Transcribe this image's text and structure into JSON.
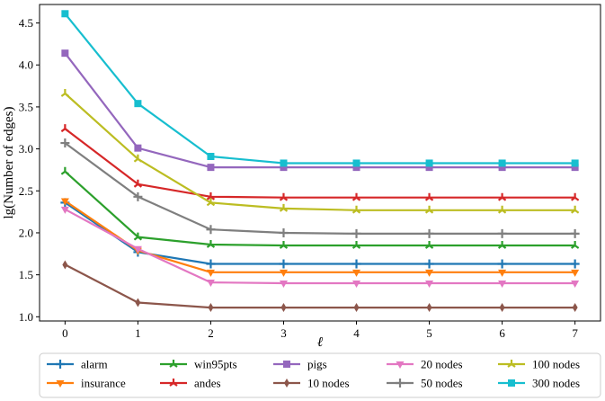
{
  "chart_data": {
    "type": "line",
    "xlabel": "ℓ",
    "ylabel": "lg(Number of edges)",
    "x": [
      0,
      1,
      2,
      3,
      4,
      5,
      6,
      7
    ],
    "xlim": [
      -0.35,
      7.35
    ],
    "ylim": [
      0.95,
      4.72
    ],
    "xticks": [
      "0",
      "1",
      "2",
      "3",
      "4",
      "5",
      "6",
      "7"
    ],
    "yticks": [
      "1.0",
      "1.5",
      "2.0",
      "2.5",
      "3.0",
      "3.5",
      "4.0",
      "4.5"
    ],
    "ytick_values": [
      1.0,
      1.5,
      2.0,
      2.5,
      3.0,
      3.5,
      4.0,
      4.5
    ],
    "grid": false,
    "legend_position": "bottom",
    "series": [
      {
        "name": "alarm",
        "color": "#1f77b4",
        "marker": "plus",
        "values": [
          2.36,
          1.77,
          1.63,
          1.63,
          1.63,
          1.63,
          1.63,
          1.63
        ]
      },
      {
        "name": "insurance",
        "color": "#ff7f0e",
        "marker": "triangle-down",
        "values": [
          2.38,
          1.79,
          1.53,
          1.53,
          1.53,
          1.53,
          1.53,
          1.53
        ]
      },
      {
        "name": "win95pts",
        "color": "#2ca02c",
        "marker": "tri",
        "values": [
          2.73,
          1.95,
          1.86,
          1.85,
          1.85,
          1.85,
          1.85,
          1.85
        ]
      },
      {
        "name": "andes",
        "color": "#d62728",
        "marker": "tri",
        "values": [
          3.24,
          2.58,
          2.43,
          2.42,
          2.42,
          2.42,
          2.42,
          2.42
        ]
      },
      {
        "name": "pigs",
        "color": "#9467bd",
        "marker": "square",
        "values": [
          4.14,
          3.01,
          2.78,
          2.78,
          2.78,
          2.78,
          2.78,
          2.78
        ]
      },
      {
        "name": "10 nodes",
        "color": "#8c564b",
        "marker": "diamond",
        "values": [
          1.62,
          1.17,
          1.11,
          1.11,
          1.11,
          1.11,
          1.11,
          1.11
        ]
      },
      {
        "name": "20 nodes",
        "color": "#e377c2",
        "marker": "triangle-down",
        "values": [
          2.28,
          1.81,
          1.41,
          1.4,
          1.4,
          1.4,
          1.4,
          1.4
        ]
      },
      {
        "name": "50 nodes",
        "color": "#7f7f7f",
        "marker": "plus",
        "values": [
          3.07,
          2.43,
          2.04,
          2.0,
          1.99,
          1.99,
          1.99,
          1.99
        ]
      },
      {
        "name": "100 nodes",
        "color": "#bcbd22",
        "marker": "tri",
        "values": [
          3.66,
          2.88,
          2.36,
          2.29,
          2.27,
          2.27,
          2.27,
          2.27
        ]
      },
      {
        "name": "300 nodes",
        "color": "#17becf",
        "marker": "square",
        "values": [
          4.61,
          3.54,
          2.91,
          2.83,
          2.83,
          2.83,
          2.83,
          2.83
        ]
      }
    ]
  }
}
